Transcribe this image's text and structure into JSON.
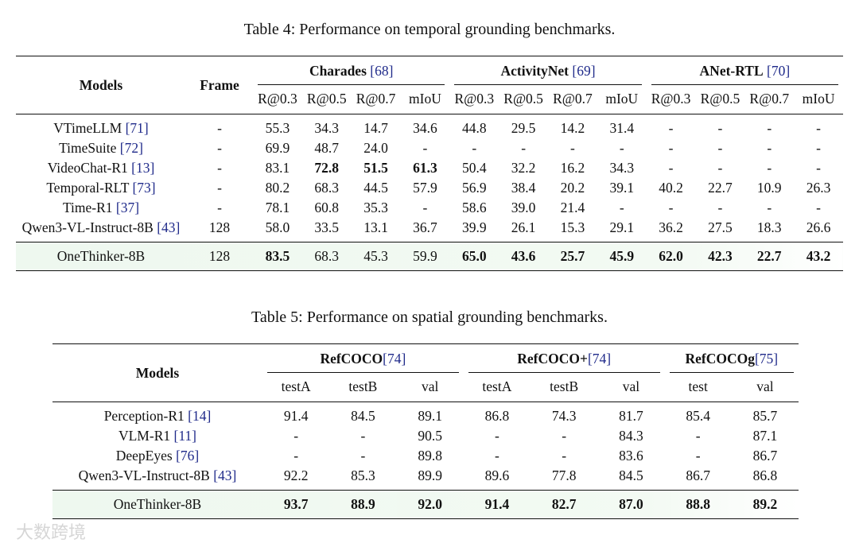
{
  "table4": {
    "title": "Table 4: Performance on temporal grounding benchmarks.",
    "header": {
      "models": "Models",
      "frame": "Frame",
      "groups": [
        {
          "name": "Charades",
          "cite": "[68]"
        },
        {
          "name": "ActivityNet",
          "cite": "[69]"
        },
        {
          "name": "ANet-RTL",
          "cite": "[70]"
        }
      ],
      "metrics": [
        "R@0.3",
        "R@0.5",
        "R@0.7",
        "mIoU",
        "R@0.3",
        "R@0.5",
        "R@0.7",
        "mIoU",
        "R@0.3",
        "R@0.5",
        "R@0.7",
        "mIoU"
      ]
    },
    "rows": [
      {
        "model": "VTimeLLM",
        "cite": "[71]",
        "cells": [
          "-",
          "55.3",
          "34.3",
          "14.7",
          "34.6",
          "44.8",
          "29.5",
          "14.2",
          "31.4",
          "-",
          "-",
          "-",
          "-"
        ],
        "bold": []
      },
      {
        "model": "TimeSuite",
        "cite": "[72]",
        "cells": [
          "-",
          "69.9",
          "48.7",
          "24.0",
          "-",
          "-",
          "-",
          "-",
          "-",
          "-",
          "-",
          "-",
          "-"
        ],
        "bold": []
      },
      {
        "model": "VideoChat-R1",
        "cite": "[13]",
        "cells": [
          "-",
          "83.1",
          "72.8",
          "51.5",
          "61.3",
          "50.4",
          "32.2",
          "16.2",
          "34.3",
          "-",
          "-",
          "-",
          "-"
        ],
        "bold": [
          2,
          3,
          4
        ]
      },
      {
        "model": "Temporal-RLT",
        "cite": "[73]",
        "cells": [
          "-",
          "80.2",
          "68.3",
          "44.5",
          "57.9",
          "56.9",
          "38.4",
          "20.2",
          "39.1",
          "40.2",
          "22.7",
          "10.9",
          "26.3"
        ],
        "bold": []
      },
      {
        "model": "Time-R1",
        "cite": "[37]",
        "cells": [
          "-",
          "78.1",
          "60.8",
          "35.3",
          "-",
          "58.6",
          "39.0",
          "21.4",
          "-",
          "-",
          "-",
          "-",
          "-"
        ],
        "bold": []
      },
      {
        "model": "Qwen3-VL-Instruct-8B",
        "cite": "[43]",
        "cells": [
          "128",
          "58.0",
          "33.5",
          "13.1",
          "36.7",
          "39.9",
          "26.1",
          "15.3",
          "29.1",
          "36.2",
          "27.5",
          "18.3",
          "26.6"
        ],
        "bold": []
      }
    ],
    "ours": {
      "model": "OneThinker-8B",
      "cells": [
        "128",
        "83.5",
        "68.3",
        "45.3",
        "59.9",
        "65.0",
        "43.6",
        "25.7",
        "45.9",
        "62.0",
        "42.3",
        "22.7",
        "43.2"
      ],
      "bold": [
        1,
        5,
        6,
        7,
        8,
        9,
        10,
        11,
        12
      ]
    }
  },
  "table5": {
    "title": "Table 5: Performance on spatial grounding benchmarks.",
    "header": {
      "models": "Models",
      "groups": [
        {
          "name": "RefCOCO",
          "cite": "[74]"
        },
        {
          "name": "RefCOCO+",
          "cite": "[74]"
        },
        {
          "name": "RefCOCOg",
          "cite": "[75]"
        }
      ],
      "metrics": [
        "testA",
        "testB",
        "val",
        "testA",
        "testB",
        "val",
        "test",
        "val"
      ]
    },
    "rows": [
      {
        "model": "Perception-R1",
        "cite": "[14]",
        "cells": [
          "91.4",
          "84.5",
          "89.1",
          "86.8",
          "74.3",
          "81.7",
          "85.4",
          "85.7"
        ],
        "bold": []
      },
      {
        "model": "VLM-R1",
        "cite": "[11]",
        "cells": [
          "-",
          "-",
          "90.5",
          "-",
          "-",
          "84.3",
          "-",
          "87.1"
        ],
        "bold": []
      },
      {
        "model": "DeepEyes",
        "cite": "[76]",
        "cells": [
          "-",
          "-",
          "89.8",
          "-",
          "-",
          "83.6",
          "-",
          "86.7"
        ],
        "bold": []
      },
      {
        "model": "Qwen3-VL-Instruct-8B",
        "cite": "[43]",
        "cells": [
          "92.2",
          "85.3",
          "89.9",
          "89.6",
          "77.8",
          "84.5",
          "86.7",
          "86.8"
        ],
        "bold": []
      }
    ],
    "ours": {
      "model": "OneThinker-8B",
      "cells": [
        "93.7",
        "88.9",
        "92.0",
        "91.4",
        "82.7",
        "87.0",
        "88.8",
        "89.2"
      ],
      "bold": [
        0,
        1,
        2,
        3,
        4,
        5,
        6,
        7
      ]
    }
  },
  "watermark": "大数跨境"
}
